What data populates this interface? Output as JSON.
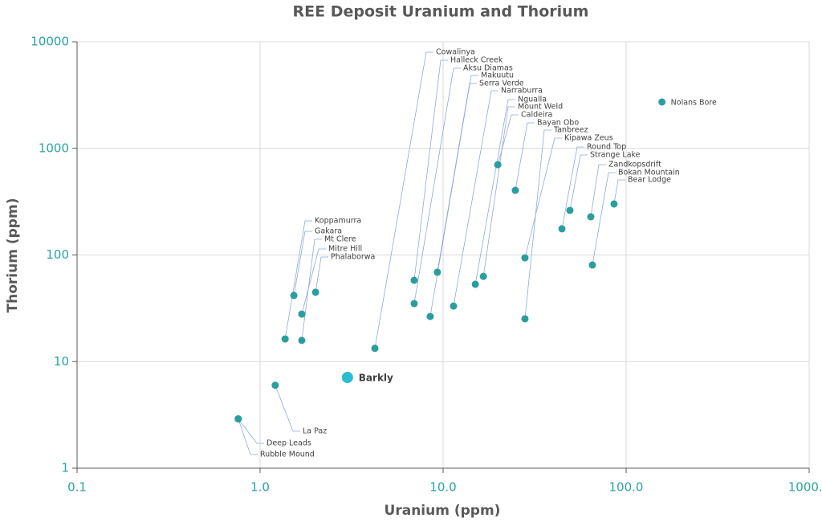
{
  "chart_data": {
    "type": "scatter",
    "title": "REE Deposit Uranium and Thorium",
    "x_label": "Uranium (ppm)",
    "y_label": "Thorium (ppm)",
    "x_log": true,
    "y_log": true,
    "grid": true,
    "xlim": [
      0.1,
      1000
    ],
    "ylim": [
      1,
      10000
    ],
    "xticks": [
      0.1,
      {
        "value": 1,
        "label": "1.0"
      },
      {
        "value": 10,
        "label": "10.0"
      },
      {
        "value": 100,
        "label": "100.0"
      },
      {
        "value": 1000,
        "label": "1000.0"
      }
    ],
    "yticks": [
      1,
      10,
      100,
      1000,
      10000
    ],
    "color": "#2a9d9d",
    "highlight_color": "#2bbccf",
    "points": [
      {
        "label": "Deep Leads",
        "x": 0.76,
        "y": 2.9
      },
      {
        "label": "Rubble Mound",
        "x": 0.76,
        "y": 2.9
      },
      {
        "label": "La Paz",
        "x": 1.21,
        "y": 6
      },
      {
        "label": "Koppamurra",
        "x": 1.37,
        "y": 16.3
      },
      {
        "label": "Gakara",
        "x": 1.53,
        "y": 41.7
      },
      {
        "label": "Mt Clere",
        "x": 1.69,
        "y": 15.8
      },
      {
        "label": "Mitre Hill",
        "x": 1.69,
        "y": 27.9
      },
      {
        "label": "Phalaborwa",
        "x": 2.01,
        "y": 44.7
      },
      {
        "label": "Cowalinya",
        "x": 4.24,
        "y": 13.3
      },
      {
        "label": "Halleck Creek",
        "x": 6.95,
        "y": 57.9
      },
      {
        "label": "Aksu Diamas",
        "x": 6.95,
        "y": 35
      },
      {
        "label": "Makuutu",
        "x": 8.5,
        "y": 26.5
      },
      {
        "label": "Serra Verde",
        "x": 9.3,
        "y": 68.9
      },
      {
        "label": "Narraburra",
        "x": 11.4,
        "y": 33.2
      },
      {
        "label": "Ngualla",
        "x": 15,
        "y": 53.1
      },
      {
        "label": "Mount Weld",
        "x": 16.6,
        "y": 63
      },
      {
        "label": "Caldeira",
        "x": 19.9,
        "y": 703
      },
      {
        "label": "Bayan Obo",
        "x": 24.8,
        "y": 404
      },
      {
        "label": "Tanbreez",
        "x": 28,
        "y": 25.2
      },
      {
        "label": "Kipawa Zeus",
        "x": 28,
        "y": 94
      },
      {
        "label": "Round Top",
        "x": 44.6,
        "y": 176
      },
      {
        "label": "Strange Lake",
        "x": 49.3,
        "y": 262
      },
      {
        "label": "Zandkopsdrift",
        "x": 64.1,
        "y": 228
      },
      {
        "label": "Bokan Mountain",
        "x": 65.4,
        "y": 80.5
      },
      {
        "label": "Bear Lodge",
        "x": 85.9,
        "y": 301
      },
      {
        "label": "Nolans Bore",
        "x": 157,
        "y": 2723
      }
    ],
    "highlight_points": [
      {
        "label": "Barkly",
        "x": 3,
        "y": 7.1
      }
    ]
  }
}
